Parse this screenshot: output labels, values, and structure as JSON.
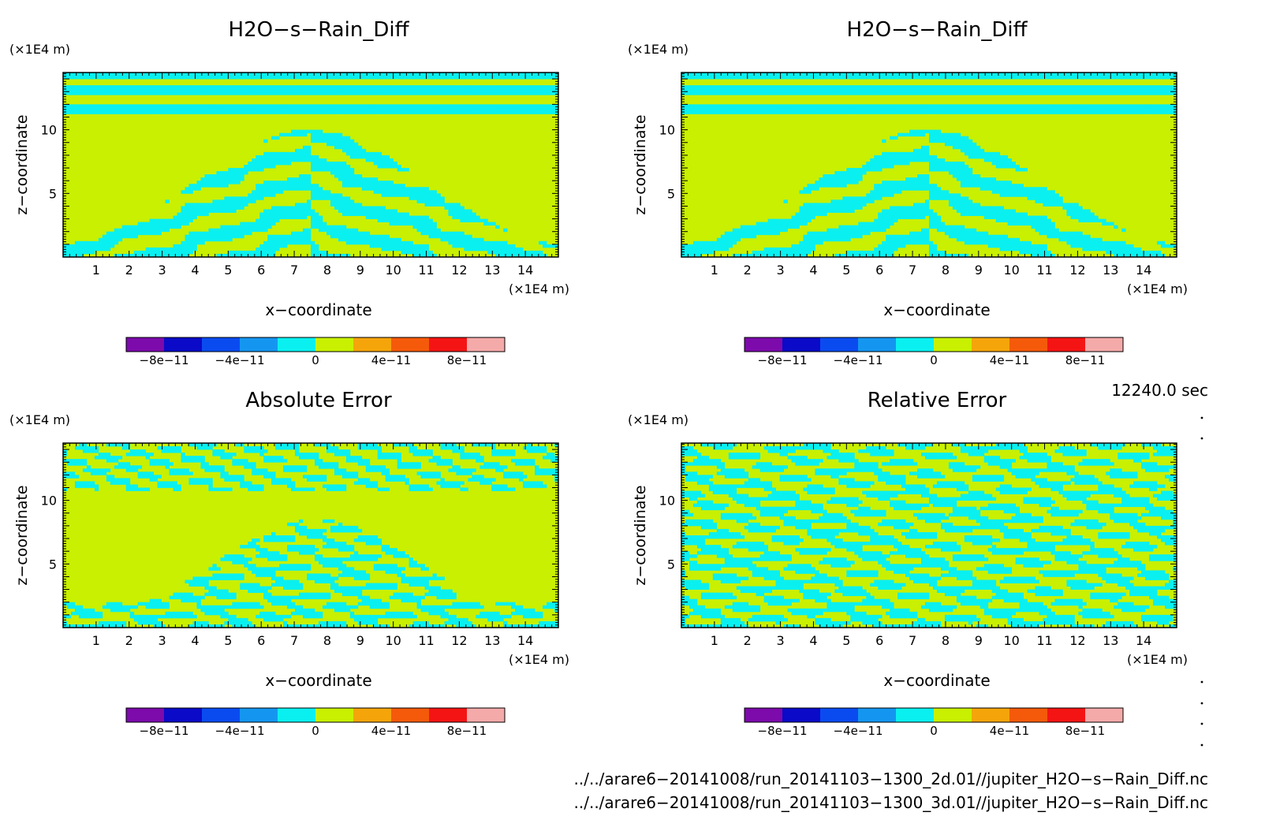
{
  "common": {
    "xlabel": "x−coordinate",
    "ylabel": "z−coordinate",
    "x_unit": "(×1E4 m)",
    "y_unit": "(×1E4 m)",
    "x_ticks": [
      "1",
      "2",
      "3",
      "4",
      "5",
      "6",
      "7",
      "8",
      "9",
      "10",
      "11",
      "12",
      "13",
      "14"
    ],
    "y_ticks": [
      "5",
      "10"
    ],
    "colorbar": {
      "colors": [
        "#7d0aab",
        "#0a0ac8",
        "#0a4bf0",
        "#1496f0",
        "#0af0f0",
        "#c8f000",
        "#f5a50a",
        "#f55a0a",
        "#f51414",
        "#f5aaaa"
      ],
      "tick_labels": [
        "−8e−11",
        "−4e−11",
        "0",
        "4e−11",
        "8e−11"
      ],
      "boundaries": [
        -1e-10,
        -8e-11,
        -6e-11,
        -4e-11,
        -2e-11,
        0,
        2e-11,
        4e-11,
        6e-11,
        8e-11,
        1e-10
      ]
    }
  },
  "time_label": "12240.0 sec",
  "footer": {
    "line1": "../../arare6−20141008/run_20141103−1300_2d.01//jupiter_H2O−s−Rain_Diff.nc",
    "line2": "../../arare6−20141008/run_20141103−1300_3d.01//jupiter_H2O−s−Rain_Diff.nc"
  },
  "chart_data": [
    {
      "type": "heatmap",
      "title": "H2O−s−Rain_Diff",
      "xlabel": "x−coordinate",
      "ylabel": "z−coordinate",
      "xlim": [
        0,
        15
      ],
      "ylim": [
        0,
        14.5
      ],
      "colors_present": [
        "#0af0f0",
        "#c8f000"
      ],
      "value_range_shown": [
        -2e-11,
        2e-11
      ]
    },
    {
      "type": "heatmap",
      "title": "H2O−s−Rain_Diff",
      "xlabel": "x−coordinate",
      "ylabel": "z−coordinate",
      "xlim": [
        0,
        15
      ],
      "ylim": [
        0,
        14.5
      ],
      "colors_present": [
        "#0af0f0",
        "#c8f000"
      ],
      "value_range_shown": [
        -2e-11,
        2e-11
      ]
    },
    {
      "type": "heatmap",
      "title": "Absolute Error",
      "xlabel": "x−coordinate",
      "ylabel": "z−coordinate",
      "xlim": [
        0,
        15
      ],
      "ylim": [
        0,
        14.5
      ],
      "colors_present": [
        "#0af0f0",
        "#c8f000"
      ],
      "value_range_shown": [
        -2e-11,
        2e-11
      ]
    },
    {
      "type": "heatmap",
      "title": "Relative Error",
      "xlabel": "x−coordinate",
      "ylabel": "z−coordinate",
      "xlim": [
        0,
        15
      ],
      "ylim": [
        0,
        14.5
      ],
      "colors_present": [
        "#0af0f0",
        "#c8f000"
      ],
      "value_range_shown": [
        -2e-11,
        2e-11
      ]
    }
  ]
}
